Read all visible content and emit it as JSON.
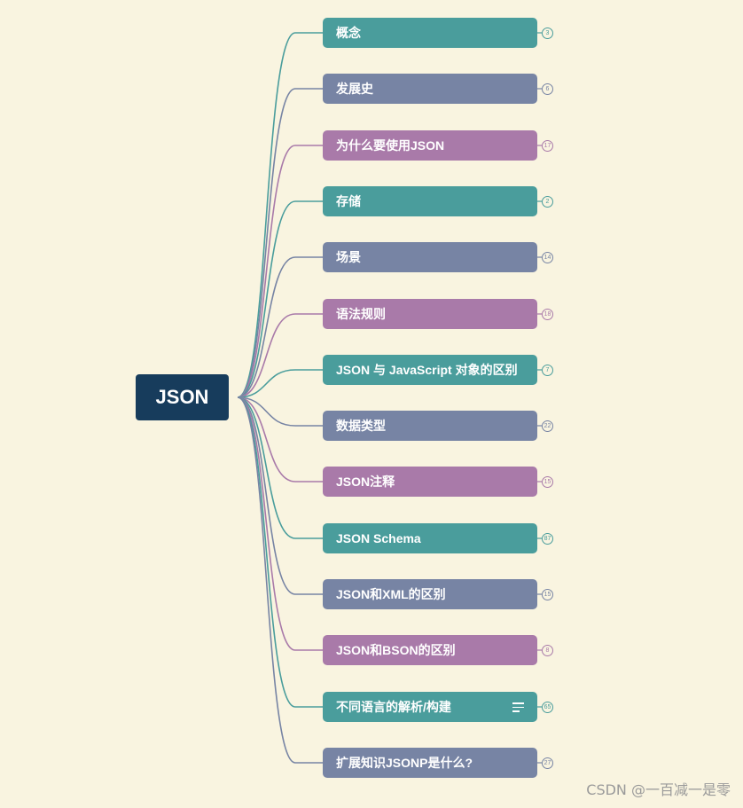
{
  "root": {
    "label": "JSON"
  },
  "colors": {
    "teal": "#4a9d9c",
    "slate": "#7784a4",
    "mauve": "#a97aa9",
    "root": "#173c5c",
    "background": "#f9f4e0"
  },
  "topics": [
    {
      "label": "概念",
      "count": "3",
      "color": "teal"
    },
    {
      "label": "发展史",
      "count": "6",
      "color": "slate"
    },
    {
      "label": "为什么要使用JSON",
      "count": "17",
      "color": "mauve"
    },
    {
      "label": "存储",
      "count": "2",
      "color": "teal"
    },
    {
      "label": "场景",
      "count": "14",
      "color": "slate"
    },
    {
      "label": "语法规则",
      "count": "18",
      "color": "mauve"
    },
    {
      "label": "JSON 与 JavaScript 对象的区别",
      "count": "7",
      "color": "teal"
    },
    {
      "label": "数据类型",
      "count": "22",
      "color": "slate"
    },
    {
      "label": "JSON注释",
      "count": "15",
      "color": "mauve"
    },
    {
      "label": "JSON Schema",
      "count": "87",
      "color": "teal"
    },
    {
      "label": "JSON和XML的区别",
      "count": "15",
      "color": "slate"
    },
    {
      "label": "JSON和BSON的区别",
      "count": "8",
      "color": "mauve"
    },
    {
      "label": "不同语言的解析/构建",
      "count": "65",
      "color": "teal",
      "has_notes": true
    },
    {
      "label": "扩展知识JSONP是什么?",
      "count": "27",
      "color": "slate"
    }
  ],
  "watermark": "CSDN @一百减一是零"
}
